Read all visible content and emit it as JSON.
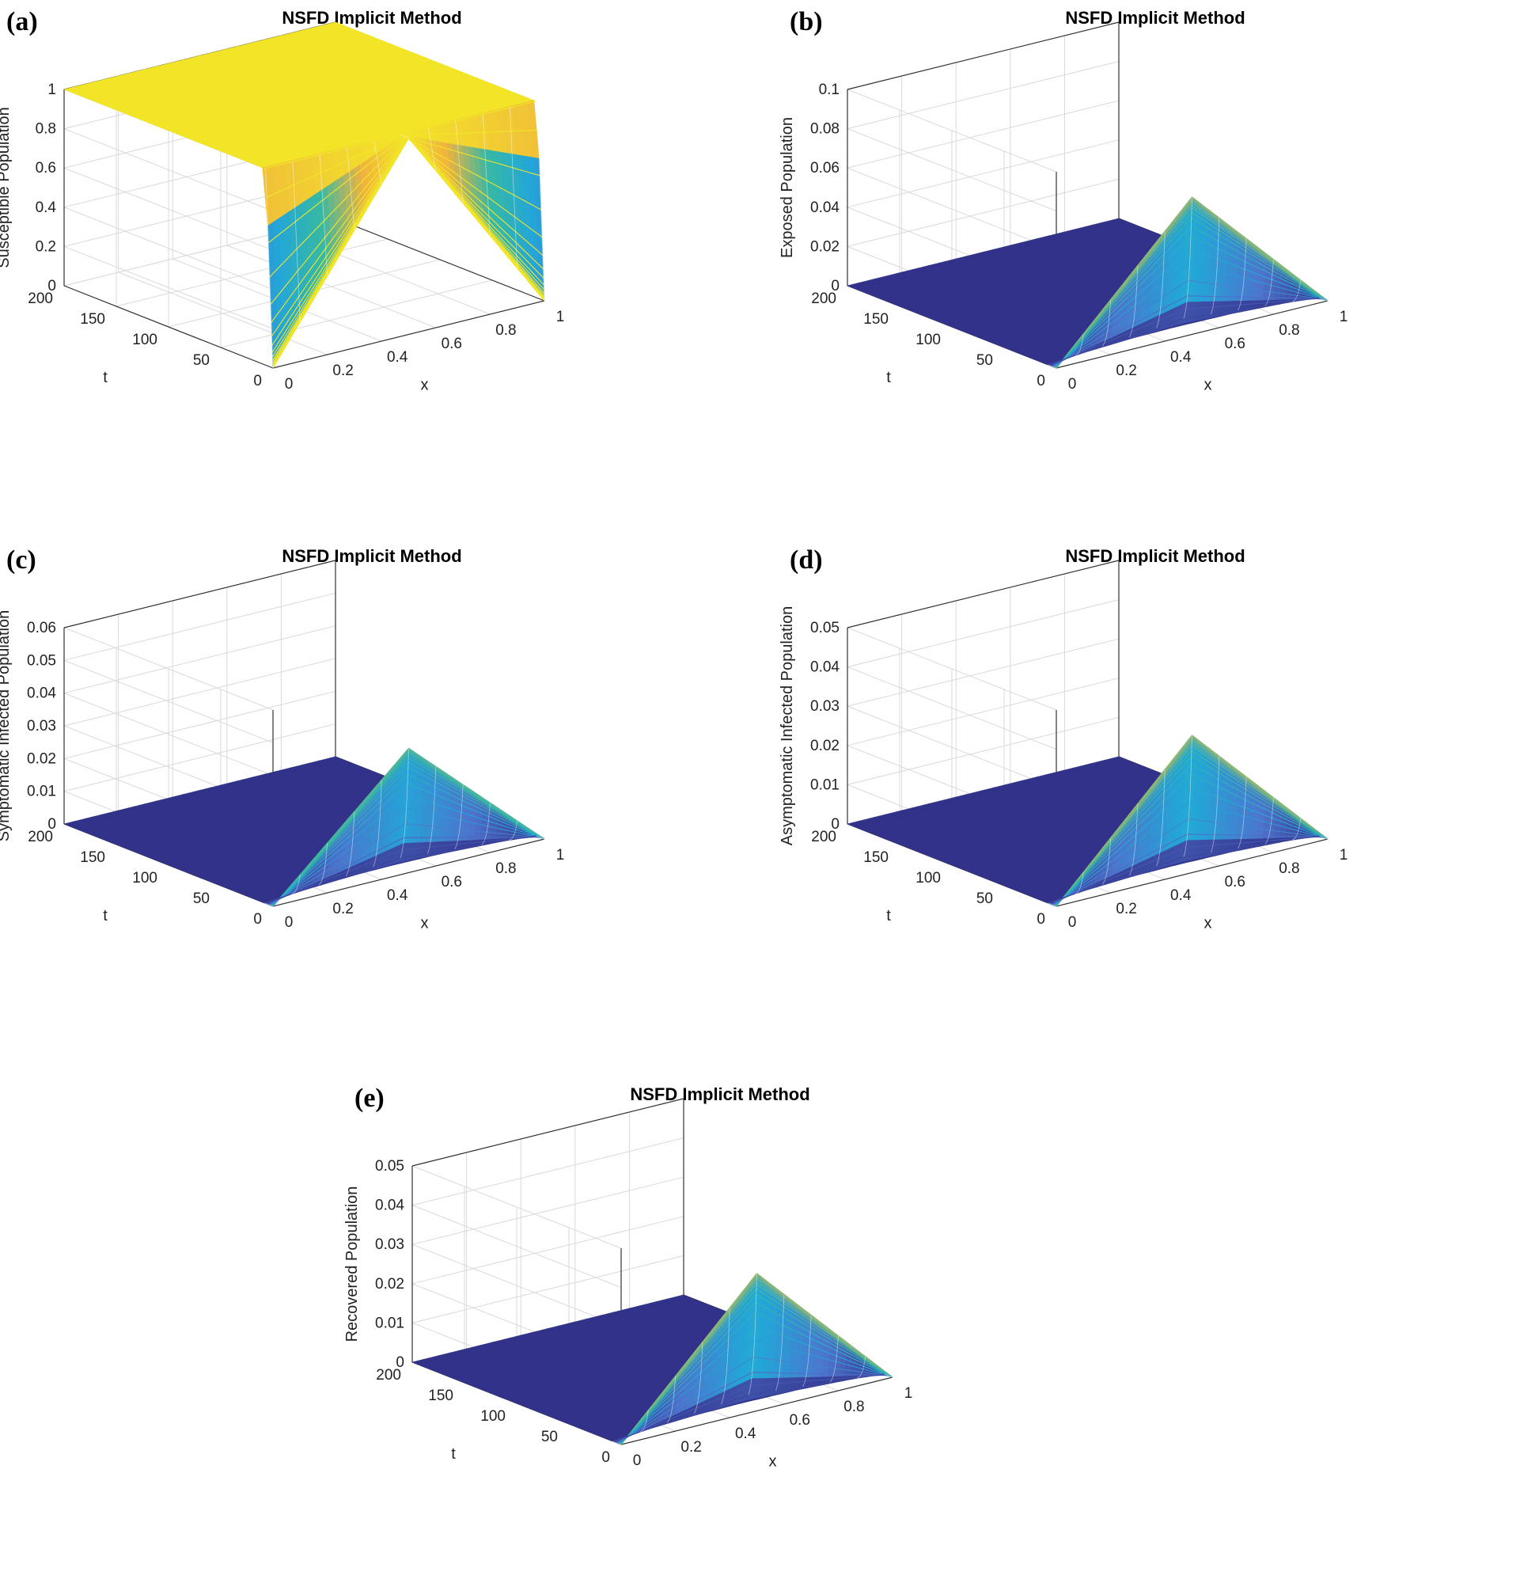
{
  "colors": {
    "yellow": "#f2e528",
    "orange": "#f1b33e",
    "teal": "#36b8a5",
    "cyan": "#23a6d8",
    "blue": "#4d74cc",
    "navy": "#32328a"
  },
  "chart_data": [
    {
      "panel": "(a)",
      "type": "surface",
      "title": "NSFD Implicit Method",
      "zlabel": "Susceptible Population",
      "xlabel": "x",
      "ylabel": "t",
      "x_ticks": [
        "0",
        "0.2",
        "0.4",
        "0.6",
        "0.8",
        "1"
      ],
      "t_ticks": [
        "0",
        "50",
        "100",
        "150",
        "200"
      ],
      "z_ticks": [
        "0",
        "0.2",
        "0.4",
        "0.6",
        "0.8",
        "1"
      ],
      "xlim": [
        0,
        1
      ],
      "tlim": [
        0,
        200
      ],
      "zlim": [
        0,
        1
      ],
      "profile": "susceptible",
      "peak": 1
    },
    {
      "panel": "(b)",
      "type": "surface",
      "title": "NSFD Implicit Method",
      "zlabel": "Exposed Population",
      "xlabel": "x",
      "ylabel": "t",
      "x_ticks": [
        "0",
        "0.2",
        "0.4",
        "0.6",
        "0.8",
        "1"
      ],
      "t_ticks": [
        "0",
        "50",
        "100",
        "150",
        "200"
      ],
      "z_ticks": [
        "0",
        "0.02",
        "0.04",
        "0.06",
        "0.08",
        "0.1"
      ],
      "xlim": [
        0,
        1
      ],
      "tlim": [
        0,
        200
      ],
      "zlim": [
        0,
        0.1
      ],
      "profile": "peak",
      "peak": 0.07
    },
    {
      "panel": "(c)",
      "type": "surface",
      "title": "NSFD Implicit Method",
      "zlabel": "Symptomatic Infected Population",
      "xlabel": "x",
      "ylabel": "t",
      "x_ticks": [
        "0",
        "0.2",
        "0.4",
        "0.6",
        "0.8",
        "1"
      ],
      "t_ticks": [
        "0",
        "50",
        "100",
        "150",
        "200"
      ],
      "z_ticks": [
        "0",
        "0.01",
        "0.02",
        "0.03",
        "0.04",
        "0.05",
        "0.06"
      ],
      "xlim": [
        0,
        1
      ],
      "tlim": [
        0,
        200
      ],
      "zlim": [
        0,
        0.06
      ],
      "profile": "peak",
      "peak": 0.038
    },
    {
      "panel": "(d)",
      "type": "surface",
      "title": "NSFD Implicit Method",
      "zlabel": "Asymptomatic Infected Population",
      "xlabel": "x",
      "ylabel": "t",
      "x_ticks": [
        "0",
        "0.2",
        "0.4",
        "0.6",
        "0.8",
        "1"
      ],
      "t_ticks": [
        "0",
        "50",
        "100",
        "150",
        "200"
      ],
      "z_ticks": [
        "0",
        "0.01",
        "0.02",
        "0.03",
        "0.04",
        "0.05"
      ],
      "xlim": [
        0,
        1
      ],
      "tlim": [
        0,
        200
      ],
      "zlim": [
        0,
        0.05
      ],
      "profile": "peak",
      "peak": 0.035
    },
    {
      "panel": "(e)",
      "type": "surface",
      "title": "NSFD Implicit Method",
      "zlabel": "Recovered Population",
      "xlabel": "x",
      "ylabel": "t",
      "x_ticks": [
        "0",
        "0.2",
        "0.4",
        "0.6",
        "0.8",
        "1"
      ],
      "t_ticks": [
        "0",
        "50",
        "100",
        "150",
        "200"
      ],
      "z_ticks": [
        "0",
        "0.01",
        "0.02",
        "0.03",
        "0.04",
        "0.05"
      ],
      "xlim": [
        0,
        1
      ],
      "tlim": [
        0,
        200
      ],
      "zlim": [
        0,
        0.05
      ],
      "profile": "peak",
      "peak": 0.035
    }
  ]
}
